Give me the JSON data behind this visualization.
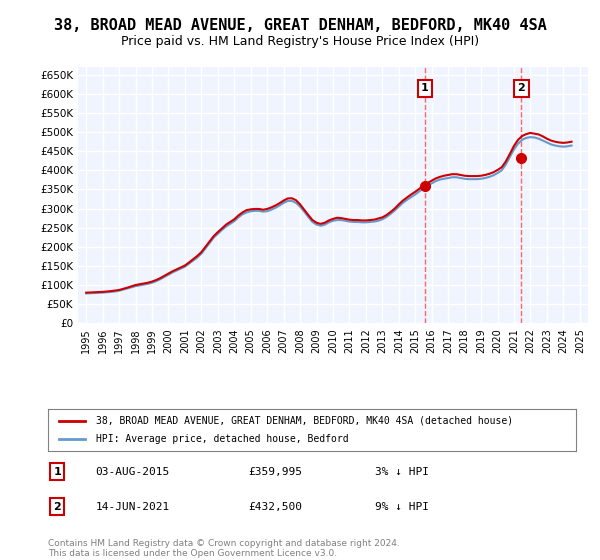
{
  "title": "38, BROAD MEAD AVENUE, GREAT DENHAM, BEDFORD, MK40 4SA",
  "subtitle": "Price paid vs. HM Land Registry's House Price Index (HPI)",
  "ylabel": "",
  "ylim": [
    0,
    670000
  ],
  "yticks": [
    0,
    50000,
    100000,
    150000,
    200000,
    250000,
    300000,
    350000,
    400000,
    450000,
    500000,
    550000,
    600000,
    650000
  ],
  "ytick_labels": [
    "£0",
    "£50K",
    "£100K",
    "£150K",
    "£200K",
    "£250K",
    "£300K",
    "£350K",
    "£400K",
    "£450K",
    "£500K",
    "£550K",
    "£600K",
    "£650K"
  ],
  "xlim_start": 1994.5,
  "xlim_end": 2025.5,
  "transaction1_x": 2015.58,
  "transaction1_y": 359995,
  "transaction1_label": "03-AUG-2015",
  "transaction1_price": "£359,995",
  "transaction1_hpi": "3% ↓ HPI",
  "transaction2_x": 2021.45,
  "transaction2_y": 432500,
  "transaction2_label": "14-JUN-2021",
  "transaction2_price": "£432,500",
  "transaction2_hpi": "9% ↓ HPI",
  "red_line_color": "#cc0000",
  "blue_line_color": "#6699cc",
  "dot_color": "#cc0000",
  "vline_color": "#ff6666",
  "background_color": "#f0f4ff",
  "grid_color": "#ffffff",
  "title_fontsize": 11,
  "subtitle_fontsize": 9,
  "legend_label_red": "38, BROAD MEAD AVENUE, GREAT DENHAM, BEDFORD, MK40 4SA (detached house)",
  "legend_label_blue": "HPI: Average price, detached house, Bedford",
  "footer": "Contains HM Land Registry data © Crown copyright and database right 2024.\nThis data is licensed under the Open Government Licence v3.0.",
  "hpi_data": {
    "years": [
      1995,
      1995.25,
      1995.5,
      1995.75,
      1996,
      1996.25,
      1996.5,
      1996.75,
      1997,
      1997.25,
      1997.5,
      1997.75,
      1998,
      1998.25,
      1998.5,
      1998.75,
      1999,
      1999.25,
      1999.5,
      1999.75,
      2000,
      2000.25,
      2000.5,
      2000.75,
      2001,
      2001.25,
      2001.5,
      2001.75,
      2002,
      2002.25,
      2002.5,
      2002.75,
      2003,
      2003.25,
      2003.5,
      2003.75,
      2004,
      2004.25,
      2004.5,
      2004.75,
      2005,
      2005.25,
      2005.5,
      2005.75,
      2006,
      2006.25,
      2006.5,
      2006.75,
      2007,
      2007.25,
      2007.5,
      2007.75,
      2008,
      2008.25,
      2008.5,
      2008.75,
      2009,
      2009.25,
      2009.5,
      2009.75,
      2010,
      2010.25,
      2010.5,
      2010.75,
      2011,
      2011.25,
      2011.5,
      2011.75,
      2012,
      2012.25,
      2012.5,
      2012.75,
      2013,
      2013.25,
      2013.5,
      2013.75,
      2014,
      2014.25,
      2014.5,
      2014.75,
      2015,
      2015.25,
      2015.5,
      2015.75,
      2016,
      2016.25,
      2016.5,
      2016.75,
      2017,
      2017.25,
      2017.5,
      2017.75,
      2018,
      2018.25,
      2018.5,
      2018.75,
      2019,
      2019.25,
      2019.5,
      2019.75,
      2020,
      2020.25,
      2020.5,
      2020.75,
      2021,
      2021.25,
      2021.5,
      2021.75,
      2022,
      2022.25,
      2022.5,
      2022.75,
      2023,
      2023.25,
      2023.5,
      2023.75,
      2024,
      2024.25,
      2024.5
    ],
    "values": [
      78000,
      78500,
      79000,
      79500,
      80000,
      81000,
      82000,
      83000,
      85000,
      88000,
      91000,
      94000,
      97000,
      99000,
      101000,
      103000,
      106000,
      110000,
      115000,
      121000,
      127000,
      133000,
      138000,
      143000,
      148000,
      156000,
      164000,
      172000,
      182000,
      196000,
      210000,
      224000,
      234000,
      244000,
      253000,
      260000,
      267000,
      277000,
      285000,
      290000,
      293000,
      294000,
      294000,
      292000,
      293000,
      297000,
      302000,
      308000,
      315000,
      320000,
      320000,
      315000,
      305000,
      292000,
      278000,
      265000,
      258000,
      255000,
      258000,
      264000,
      268000,
      270000,
      270000,
      268000,
      266000,
      265000,
      265000,
      264000,
      264000,
      265000,
      266000,
      268000,
      272000,
      278000,
      286000,
      295000,
      305000,
      315000,
      323000,
      330000,
      337000,
      345000,
      353000,
      360000,
      366000,
      372000,
      376000,
      378000,
      380000,
      382000,
      382000,
      380000,
      378000,
      377000,
      377000,
      377000,
      378000,
      380000,
      383000,
      387000,
      393000,
      400000,
      415000,
      435000,
      455000,
      470000,
      480000,
      485000,
      487000,
      486000,
      483000,
      478000,
      473000,
      468000,
      465000,
      463000,
      462000,
      463000,
      465000
    ]
  },
  "house_data": {
    "years": [
      1995,
      1995.25,
      1995.5,
      1995.75,
      1996,
      1996.25,
      1996.5,
      1996.75,
      1997,
      1997.25,
      1997.5,
      1997.75,
      1998,
      1998.25,
      1998.5,
      1998.75,
      1999,
      1999.25,
      1999.5,
      1999.75,
      2000,
      2000.25,
      2000.5,
      2000.75,
      2001,
      2001.25,
      2001.5,
      2001.75,
      2002,
      2002.25,
      2002.5,
      2002.75,
      2003,
      2003.25,
      2003.5,
      2003.75,
      2004,
      2004.25,
      2004.5,
      2004.75,
      2005,
      2005.25,
      2005.5,
      2005.75,
      2006,
      2006.25,
      2006.5,
      2006.75,
      2007,
      2007.25,
      2007.5,
      2007.75,
      2008,
      2008.25,
      2008.5,
      2008.75,
      2009,
      2009.25,
      2009.5,
      2009.75,
      2010,
      2010.25,
      2010.5,
      2010.75,
      2011,
      2011.25,
      2011.5,
      2011.75,
      2012,
      2012.25,
      2012.5,
      2012.75,
      2013,
      2013.25,
      2013.5,
      2013.75,
      2014,
      2014.25,
      2014.5,
      2014.75,
      2015,
      2015.25,
      2015.5,
      2015.75,
      2016,
      2016.25,
      2016.5,
      2016.75,
      2017,
      2017.25,
      2017.5,
      2017.75,
      2018,
      2018.25,
      2018.5,
      2018.75,
      2019,
      2019.25,
      2019.5,
      2019.75,
      2020,
      2020.25,
      2020.5,
      2020.75,
      2021,
      2021.25,
      2021.5,
      2021.75,
      2022,
      2022.25,
      2022.5,
      2022.75,
      2023,
      2023.25,
      2023.5,
      2023.75,
      2024,
      2024.25,
      2024.5
    ],
    "values": [
      80000,
      80500,
      81000,
      81500,
      82000,
      83000,
      84000,
      85500,
      87000,
      90000,
      93000,
      96500,
      100000,
      102000,
      104000,
      106000,
      109000,
      113000,
      118000,
      124000,
      130000,
      136000,
      141000,
      146000,
      151000,
      159000,
      167500,
      176000,
      186000,
      200000,
      214000,
      228000,
      238500,
      248000,
      258000,
      265000,
      272000,
      282000,
      290000,
      296000,
      298000,
      299000,
      299000,
      297000,
      299000,
      303000,
      308000,
      314000,
      321000,
      326500,
      327000,
      322000,
      311000,
      297000,
      283000,
      270000,
      263000,
      260000,
      263000,
      269000,
      273000,
      276000,
      275000,
      273000,
      271000,
      270000,
      270000,
      269000,
      269000,
      270000,
      271000,
      274000,
      277000,
      283000,
      291000,
      300000,
      311000,
      321000,
      329000,
      337000,
      344000,
      352000,
      360000,
      367000,
      373000,
      379000,
      383000,
      386000,
      388000,
      390000,
      390000,
      388000,
      386000,
      385000,
      385000,
      385000,
      386000,
      388000,
      391000,
      395000,
      401000,
      408000,
      423000,
      443000,
      464000,
      480000,
      490000,
      495000,
      498000,
      496000,
      494000,
      489000,
      483000,
      478000,
      475000,
      473000,
      472000,
      473000,
      475000
    ]
  }
}
